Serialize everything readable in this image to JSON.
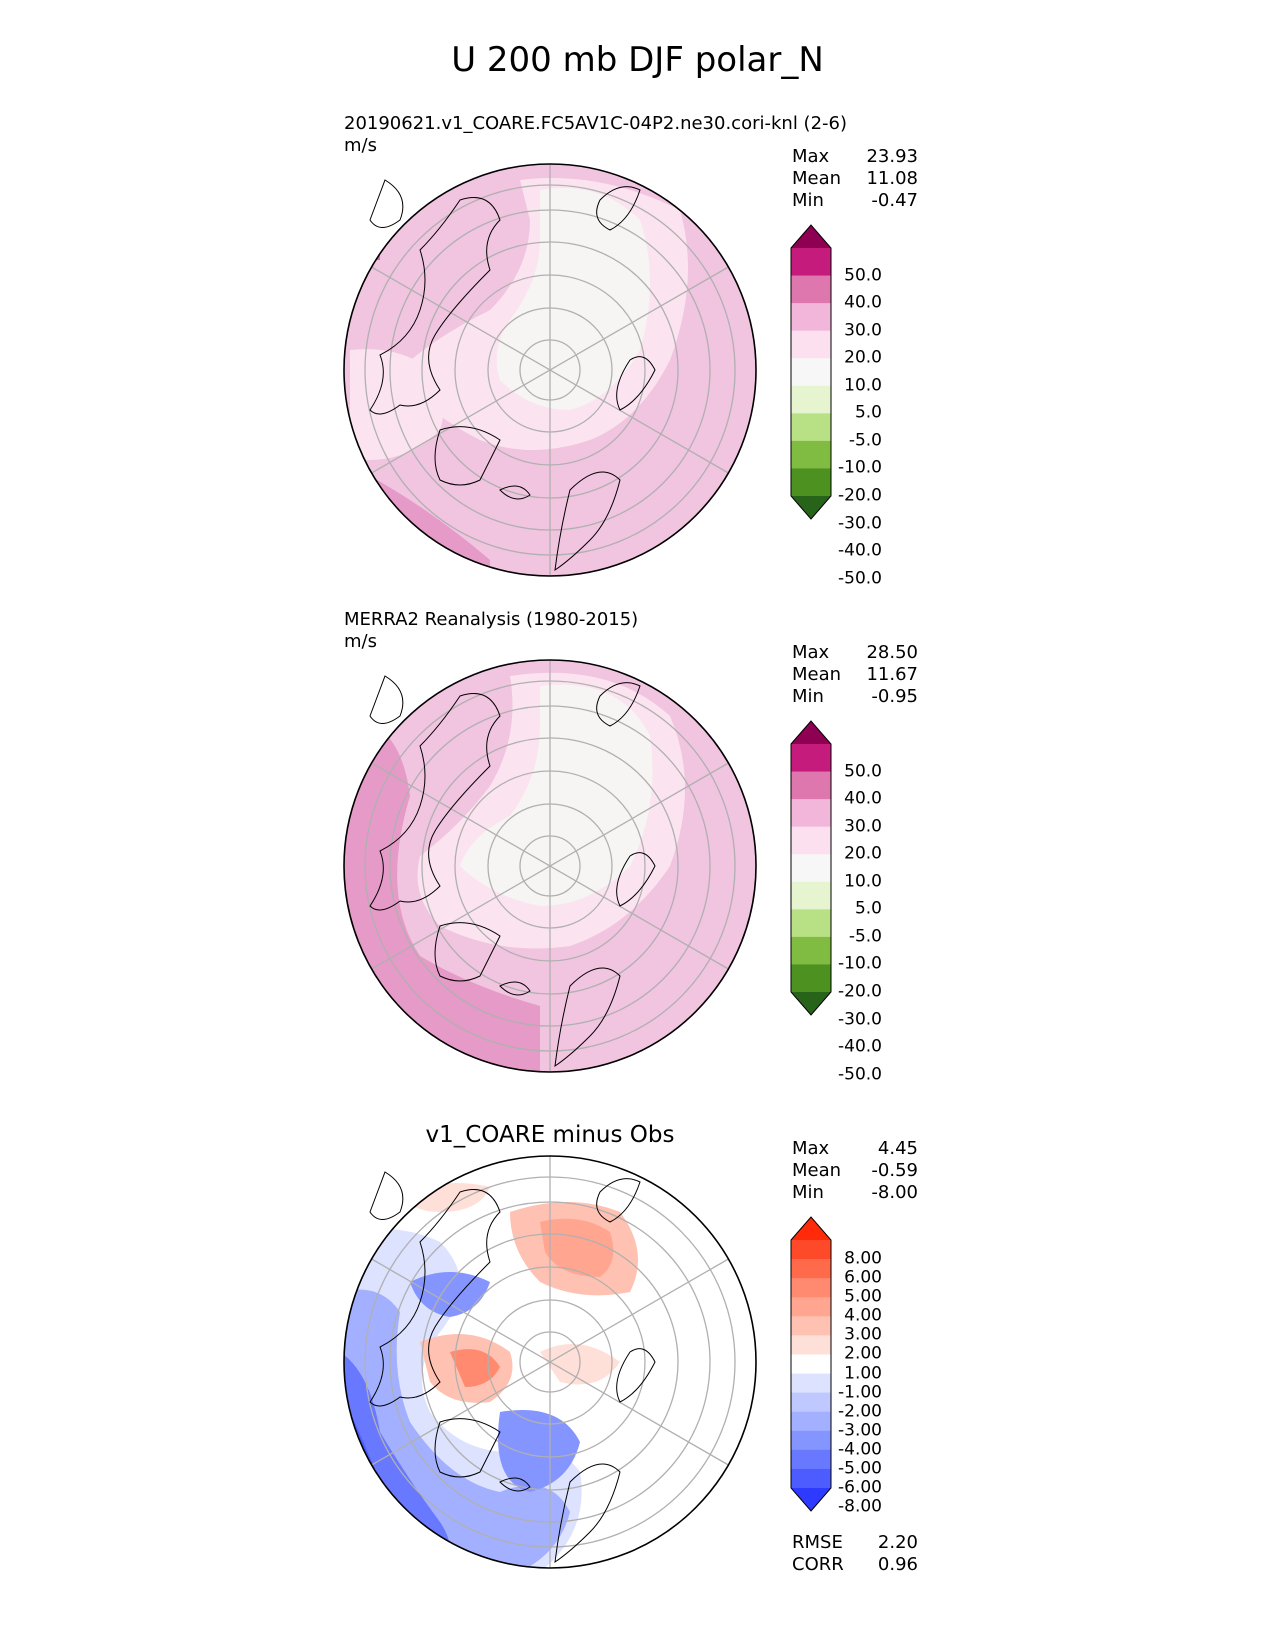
{
  "figure": {
    "title": "U 200 mb DJF polar_N"
  },
  "panels": [
    {
      "id": "test",
      "title": "20190621.v1_COARE.FC5AV1C-04P2.ne30.cori-knl (2-6)",
      "units": "m/s",
      "stats": [
        {
          "label": "Max",
          "value": "23.93"
        },
        {
          "label": "Mean",
          "value": "11.08"
        },
        {
          "label": "Min",
          "value": "-0.47"
        }
      ],
      "colorbar": {
        "labels": [
          "50.0",
          "40.0",
          "30.0",
          "20.0",
          "10.0",
          "5.0",
          "-5.0",
          "-10.0",
          "-20.0",
          "-30.0",
          "-40.0",
          "-50.0"
        ],
        "colors_top_to_bottom": [
          "#8e0152",
          "#c51b7d",
          "#de77ae",
          "#f1b6da",
          "#fde0ef",
          "#f7f7f7",
          "#e6f5d0",
          "#b8e186",
          "#7fbc41",
          "#4d9221",
          "#276419"
        ]
      }
    },
    {
      "id": "reference",
      "title": "MERRA2 Reanalysis (1980-2015)",
      "units": "m/s",
      "stats": [
        {
          "label": "Max",
          "value": "28.50"
        },
        {
          "label": "Mean",
          "value": "11.67"
        },
        {
          "label": "Min",
          "value": "-0.95"
        }
      ],
      "colorbar": {
        "labels": [
          "50.0",
          "40.0",
          "30.0",
          "20.0",
          "10.0",
          "5.0",
          "-5.0",
          "-10.0",
          "-20.0",
          "-30.0",
          "-40.0",
          "-50.0"
        ],
        "colors_top_to_bottom": [
          "#8e0152",
          "#c51b7d",
          "#de77ae",
          "#f1b6da",
          "#fde0ef",
          "#f7f7f7",
          "#e6f5d0",
          "#b8e186",
          "#7fbc41",
          "#4d9221",
          "#276419"
        ]
      }
    },
    {
      "id": "difference",
      "title": "v1_COARE minus Obs",
      "stats": [
        {
          "label": "Max",
          "value": "4.45"
        },
        {
          "label": "Mean",
          "value": "-0.59"
        },
        {
          "label": "Min",
          "value": "-8.00"
        }
      ],
      "metrics": [
        {
          "label": "RMSE",
          "value": "2.20"
        },
        {
          "label": "CORR",
          "value": "0.96"
        }
      ],
      "colorbar": {
        "labels": [
          "8.00",
          "6.00",
          "5.00",
          "4.00",
          "3.00",
          "2.00",
          "1.00",
          "-1.00",
          "-2.00",
          "-3.00",
          "-4.00",
          "-5.00",
          "-6.00",
          "-8.00"
        ],
        "colors_top_to_bottom": [
          "#ff2a0a",
          "#ff4a2a",
          "#ff6a4a",
          "#ff8a70",
          "#ffa590",
          "#ffc2b2",
          "#ffe0d8",
          "#ffffff",
          "#dde2ff",
          "#bfc9ff",
          "#a3b0ff",
          "#8595ff",
          "#6878ff",
          "#4c5cff",
          "#2e3aff"
        ]
      }
    }
  ],
  "palette": {
    "land_outline": "#000000",
    "graticule": "#b0b0b0"
  }
}
